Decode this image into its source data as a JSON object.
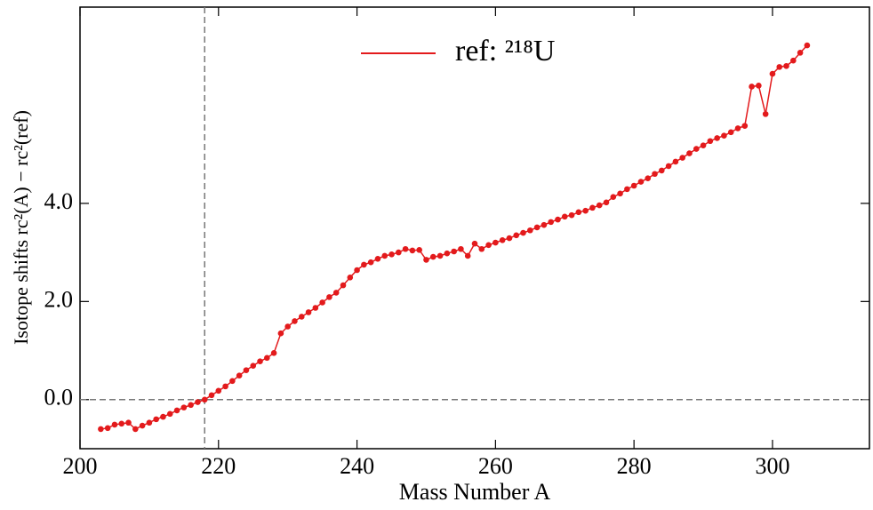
{
  "chart_data": {
    "type": "line",
    "xlabel": "Mass Number A",
    "ylabel": "Isotope shifts rc²(A) − rc²(ref)",
    "x": [
      203,
      204,
      205,
      206,
      207,
      208,
      209,
      210,
      211,
      212,
      213,
      214,
      215,
      216,
      217,
      218,
      219,
      220,
      221,
      222,
      223,
      224,
      225,
      226,
      227,
      228,
      229,
      230,
      231,
      232,
      233,
      234,
      235,
      236,
      237,
      238,
      239,
      240,
      241,
      242,
      243,
      244,
      245,
      246,
      247,
      248,
      249,
      250,
      251,
      252,
      253,
      254,
      255,
      256,
      257,
      258,
      259,
      260,
      261,
      262,
      263,
      264,
      265,
      266,
      267,
      268,
      269,
      270,
      271,
      272,
      273,
      274,
      275,
      276,
      277,
      278,
      279,
      280,
      281,
      282,
      283,
      284,
      285,
      286,
      287,
      288,
      289,
      290,
      291,
      292,
      293,
      294,
      295,
      296,
      297,
      298,
      299,
      300,
      301,
      302,
      303,
      304,
      305
    ],
    "series": [
      {
        "name": "ref: ²¹⁸U",
        "color": "#e31a1c",
        "values": [
          -0.6,
          -0.58,
          -0.51,
          -0.49,
          -0.47,
          -0.6,
          -0.53,
          -0.47,
          -0.4,
          -0.35,
          -0.29,
          -0.22,
          -0.16,
          -0.11,
          -0.05,
          0,
          0.09,
          0.18,
          0.27,
          0.38,
          0.49,
          0.6,
          0.69,
          0.78,
          0.85,
          0.95,
          1.35,
          1.49,
          1.6,
          1.69,
          1.78,
          1.87,
          1.98,
          2.09,
          2.18,
          2.33,
          2.49,
          2.64,
          2.75,
          2.8,
          2.87,
          2.93,
          2.96,
          3.0,
          3.07,
          3.04,
          3.05,
          2.85,
          2.91,
          2.93,
          2.98,
          3.02,
          3.07,
          2.93,
          3.18,
          3.07,
          3.15,
          3.2,
          3.25,
          3.29,
          3.35,
          3.4,
          3.45,
          3.51,
          3.56,
          3.62,
          3.67,
          3.73,
          3.76,
          3.82,
          3.85,
          3.91,
          3.96,
          4.02,
          4.13,
          4.2,
          4.29,
          4.36,
          4.44,
          4.51,
          4.6,
          4.67,
          4.76,
          4.85,
          4.93,
          5.02,
          5.11,
          5.18,
          5.27,
          5.33,
          5.38,
          5.45,
          5.53,
          5.58,
          6.38,
          6.4,
          5.82,
          6.64,
          6.78,
          6.8,
          6.91,
          7.07,
          7.22
        ]
      }
    ],
    "xlim": [
      200,
      314
    ],
    "ylim": [
      -1.0,
      8.0
    ],
    "xticks": [
      200,
      220,
      240,
      260,
      280,
      300
    ],
    "yticks": [
      {
        "value": 0,
        "label": "0.0"
      },
      {
        "value": 2,
        "label": "2.0"
      },
      {
        "value": 4,
        "label": "4.0"
      }
    ],
    "vline": 218,
    "hline": 0,
    "legend": "upper center"
  }
}
